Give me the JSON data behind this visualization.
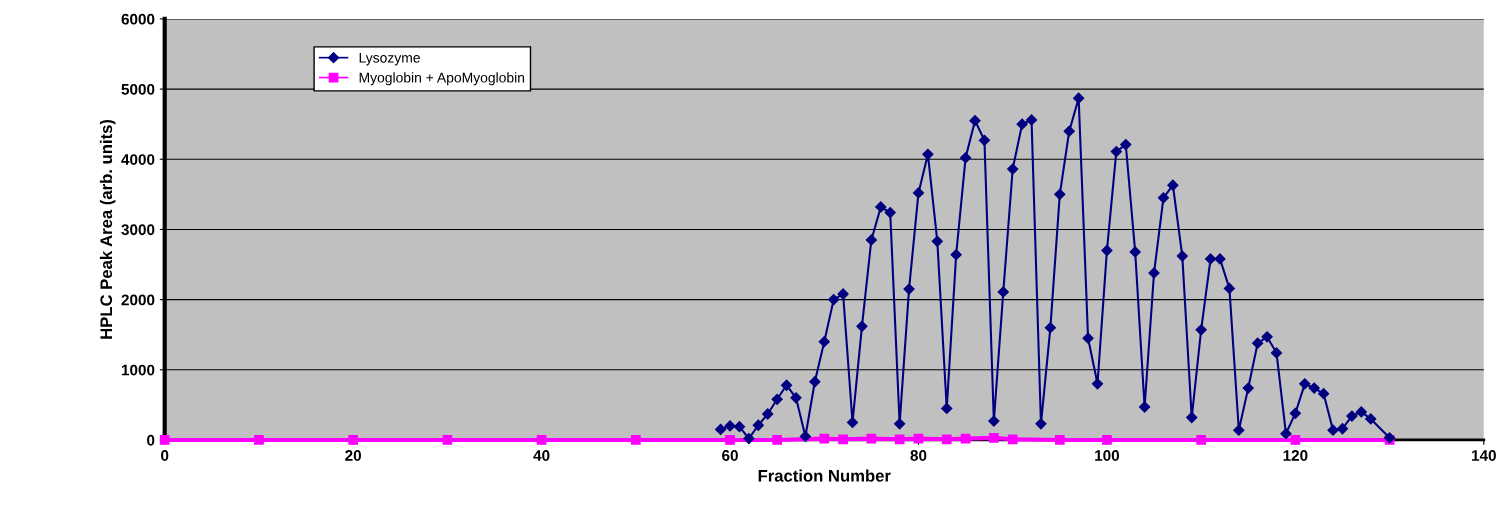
{
  "chart_data": {
    "type": "line",
    "xlabel": "Fraction Number",
    "ylabel": "HPLC Peak Area (arb. units)",
    "xlim": [
      0,
      140
    ],
    "xticks": [
      0,
      20,
      40,
      60,
      80,
      100,
      120,
      140
    ],
    "ylim": [
      0,
      6000
    ],
    "yticks": [
      0,
      1000,
      2000,
      3000,
      4000,
      5000,
      6000
    ],
    "grid": "y",
    "legend": "top left",
    "series": [
      {
        "name": "Lysozyme",
        "color": "#000080",
        "marker": "diamond",
        "x": [
          59,
          60,
          61,
          62,
          63,
          64,
          65,
          66,
          67,
          68,
          69,
          70,
          71,
          72,
          73,
          74,
          75,
          76,
          77,
          78,
          79,
          80,
          81,
          82,
          83,
          84,
          85,
          86,
          87,
          88,
          89,
          90,
          91,
          92,
          93,
          94,
          95,
          96,
          97,
          98,
          99,
          100,
          101,
          102,
          103,
          104,
          105,
          106,
          107,
          108,
          109,
          110,
          111,
          112,
          113,
          114,
          115,
          116,
          117,
          118,
          119,
          120,
          121,
          122,
          123,
          124,
          125,
          126,
          127,
          128,
          130
        ],
        "values": [
          150,
          200,
          190,
          20,
          210,
          370,
          580,
          780,
          600,
          50,
          830,
          1400,
          2000,
          2080,
          250,
          1620,
          2850,
          3320,
          3240,
          230,
          2150,
          3520,
          4070,
          2830,
          450,
          2640,
          4020,
          4550,
          4270,
          270,
          2110,
          3860,
          4500,
          4560,
          230,
          1600,
          3500,
          4400,
          4870,
          1450,
          800,
          2700,
          4110,
          4210,
          2680,
          470,
          2380,
          3450,
          3630,
          2620,
          320,
          1570,
          2580,
          2580,
          2160,
          140,
          740,
          1380,
          1470,
          1240,
          90,
          380,
          800,
          740,
          660,
          140,
          160,
          340,
          400,
          300,
          30
        ]
      },
      {
        "name": "Myoglobin + ApoMyoglobin",
        "color": "#ff00ff",
        "marker": "square",
        "x": [
          0,
          10,
          20,
          30,
          40,
          50,
          60,
          65,
          70,
          72,
          75,
          78,
          80,
          83,
          85,
          88,
          90,
          95,
          100,
          110,
          120,
          130
        ],
        "values": [
          0,
          0,
          0,
          0,
          0,
          0,
          0,
          0,
          20,
          10,
          20,
          10,
          20,
          10,
          20,
          30,
          10,
          0,
          0,
          0,
          0,
          0
        ]
      }
    ]
  }
}
